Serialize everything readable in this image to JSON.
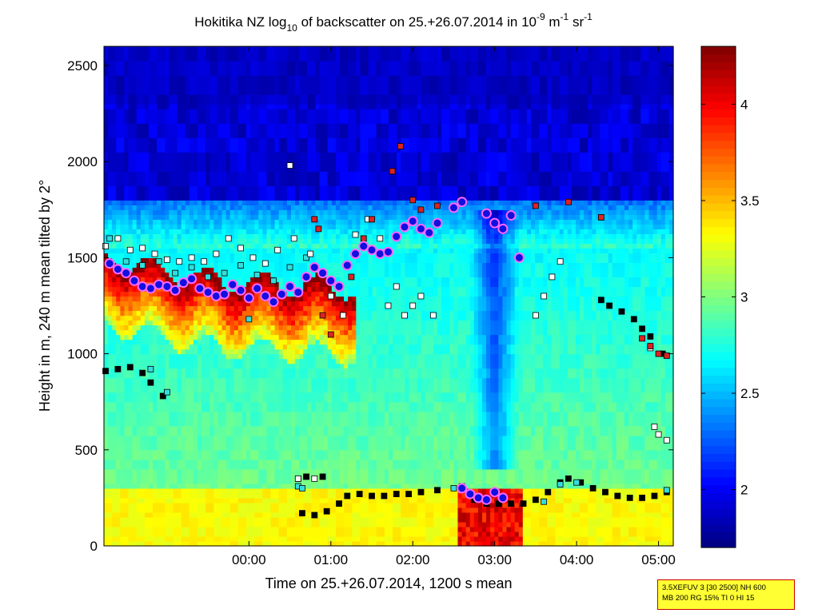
{
  "chart_data": {
    "type": "heatmap",
    "title": "Hokitika NZ log10 of backscatter on 25.+26.07.2014 in 10-9 m-1 sr-1",
    "title_parts": {
      "pre": "Hokitika NZ log",
      "sub": "10",
      "mid": " of backscatter on 25.+26.07.2014 in 10",
      "sup1": "-9",
      "mid2": " m",
      "sup2": "-1",
      "mid3": " sr",
      "sup3": "-1"
    },
    "xlabel": "Time on 25.+26.07.2014, 1200 s mean",
    "ylabel": "Height in m, 240 m mean tilted by 2°",
    "x_ticks": [
      "00:00",
      "01:00",
      "02:00",
      "03:00",
      "04:00",
      "05:00"
    ],
    "x_range_hours": [
      -1.77,
      5.18
    ],
    "y_ticks": [
      "0",
      "500",
      "1000",
      "1500",
      "2000",
      "2500"
    ],
    "y_range": [
      0,
      2600
    ],
    "colorbar": {
      "ticks": [
        "2",
        "2.5",
        "3",
        "3.5",
        "4"
      ],
      "range": [
        1.7,
        4.3
      ],
      "colormap": "jet"
    },
    "field_features": {
      "background_lower": 2.95,
      "background_upper_dark": 1.8,
      "cloud_layer_top_heights_m": [
        1500,
        1380,
        1350,
        1300,
        1380,
        1500
      ],
      "surface_layer_top_m": 300
    },
    "markers": {
      "cloud_base_circles": {
        "color": "#1010e0",
        "edge": "#ff66ff",
        "points": [
          [
            -1.7,
            1470
          ],
          [
            -1.6,
            1440
          ],
          [
            -1.5,
            1420
          ],
          [
            -1.4,
            1380
          ],
          [
            -1.3,
            1350
          ],
          [
            -1.2,
            1340
          ],
          [
            -1.1,
            1360
          ],
          [
            -1.0,
            1350
          ],
          [
            -0.9,
            1330
          ],
          [
            -0.8,
            1370
          ],
          [
            -0.7,
            1390
          ],
          [
            -0.6,
            1340
          ],
          [
            -0.5,
            1320
          ],
          [
            -0.4,
            1300
          ],
          [
            -0.3,
            1310
          ],
          [
            -0.2,
            1360
          ],
          [
            -0.1,
            1330
          ],
          [
            0.0,
            1290
          ],
          [
            0.1,
            1340
          ],
          [
            0.2,
            1300
          ],
          [
            0.3,
            1270
          ],
          [
            0.4,
            1310
          ],
          [
            0.5,
            1350
          ],
          [
            0.6,
            1320
          ],
          [
            0.7,
            1400
          ],
          [
            0.8,
            1450
          ],
          [
            0.9,
            1420
          ],
          [
            1.0,
            1380
          ],
          [
            1.1,
            1350
          ],
          [
            1.2,
            1460
          ],
          [
            1.3,
            1520
          ],
          [
            1.4,
            1560
          ],
          [
            1.5,
            1540
          ],
          [
            1.6,
            1520
          ],
          [
            1.7,
            1530
          ],
          [
            1.8,
            1610
          ],
          [
            1.9,
            1660
          ],
          [
            2.0,
            1690
          ],
          [
            2.1,
            1650
          ],
          [
            2.2,
            1630
          ],
          [
            2.3,
            1680
          ],
          [
            2.5,
            1760
          ],
          [
            2.6,
            1790
          ],
          [
            2.9,
            1730
          ],
          [
            3.0,
            1680
          ],
          [
            3.1,
            1650
          ],
          [
            3.2,
            1720
          ],
          [
            3.3,
            1500
          ],
          [
            2.6,
            300
          ],
          [
            2.7,
            270
          ],
          [
            2.8,
            250
          ],
          [
            2.9,
            240
          ],
          [
            3.0,
            280
          ],
          [
            3.1,
            250
          ]
        ]
      },
      "white_squares": {
        "color": "#ffffff",
        "points": [
          [
            -1.75,
            1560
          ],
          [
            -1.6,
            1600
          ],
          [
            -1.45,
            1540
          ],
          [
            -1.3,
            1550
          ],
          [
            -1.15,
            1520
          ],
          [
            -1.0,
            1490
          ],
          [
            -0.85,
            1480
          ],
          [
            -0.7,
            1500
          ],
          [
            -0.55,
            1480
          ],
          [
            -0.4,
            1520
          ],
          [
            -0.25,
            1600
          ],
          [
            -0.1,
            1550
          ],
          [
            0.05,
            1500
          ],
          [
            0.2,
            1470
          ],
          [
            0.35,
            1540
          ],
          [
            0.5,
            1980
          ],
          [
            0.55,
            1600
          ],
          [
            0.75,
            1520
          ],
          [
            1.0,
            1300
          ],
          [
            1.15,
            1200
          ],
          [
            1.3,
            1620
          ],
          [
            1.45,
            1700
          ],
          [
            1.6,
            1600
          ],
          [
            1.7,
            1250
          ],
          [
            1.8,
            1350
          ],
          [
            1.9,
            1200
          ],
          [
            2.0,
            1250
          ],
          [
            2.1,
            1300
          ],
          [
            2.25,
            1200
          ],
          [
            3.5,
            1200
          ],
          [
            3.6,
            1300
          ],
          [
            3.7,
            1400
          ],
          [
            3.8,
            1480
          ],
          [
            4.9,
            1030
          ],
          [
            4.95,
            620
          ],
          [
            5.0,
            580
          ],
          [
            5.1,
            550
          ],
          [
            0.6,
            350
          ],
          [
            0.8,
            350
          ]
        ]
      },
      "red_squares": {
        "color": "#dd2222",
        "points": [
          [
            0.8,
            1700
          ],
          [
            0.85,
            1650
          ],
          [
            1.25,
            1400
          ],
          [
            1.4,
            1600
          ],
          [
            1.5,
            1700
          ],
          [
            1.75,
            1950
          ],
          [
            1.85,
            2080
          ],
          [
            2.0,
            1800
          ],
          [
            2.1,
            1750
          ],
          [
            2.3,
            1770
          ],
          [
            3.5,
            1770
          ],
          [
            3.9,
            1790
          ],
          [
            4.3,
            1710
          ],
          [
            4.8,
            1080
          ],
          [
            4.9,
            1040
          ],
          [
            5.0,
            1000
          ],
          [
            5.1,
            990
          ],
          [
            0.9,
            1200
          ],
          [
            1.0,
            1100
          ]
        ]
      },
      "cyan_squares": {
        "color": "#33dddd",
        "points": [
          [
            -1.7,
            1600
          ],
          [
            -1.5,
            1480
          ],
          [
            -1.3,
            1460
          ],
          [
            -1.1,
            1480
          ],
          [
            -0.9,
            1420
          ],
          [
            -0.7,
            1450
          ],
          [
            -0.5,
            1400
          ],
          [
            -0.3,
            1420
          ],
          [
            -0.1,
            1460
          ],
          [
            0.1,
            1410
          ],
          [
            0.3,
            1380
          ],
          [
            0.5,
            1450
          ],
          [
            0.7,
            1500
          ],
          [
            0.6,
            310
          ],
          [
            0.65,
            300
          ],
          [
            2.5,
            300
          ],
          [
            3.6,
            230
          ],
          [
            3.8,
            320
          ],
          [
            4.0,
            330
          ],
          [
            5.1,
            290
          ],
          [
            -1.2,
            920
          ],
          [
            -1.0,
            800
          ],
          [
            0.0,
            1180
          ]
        ]
      },
      "black_points": {
        "color": "#000000",
        "points": [
          [
            -1.75,
            910
          ],
          [
            -1.6,
            920
          ],
          [
            -1.45,
            930
          ],
          [
            -1.3,
            900
          ],
          [
            -1.2,
            850
          ],
          [
            -1.05,
            780
          ],
          [
            0.65,
            170
          ],
          [
            0.8,
            160
          ],
          [
            0.95,
            180
          ],
          [
            1.1,
            220
          ],
          [
            1.2,
            260
          ],
          [
            1.35,
            270
          ],
          [
            1.5,
            260
          ],
          [
            1.65,
            260
          ],
          [
            1.8,
            270
          ],
          [
            1.95,
            270
          ],
          [
            2.1,
            280
          ],
          [
            2.3,
            290
          ],
          [
            2.6,
            310
          ],
          [
            2.75,
            240
          ],
          [
            2.9,
            220
          ],
          [
            3.05,
            220
          ],
          [
            3.2,
            220
          ],
          [
            3.35,
            220
          ],
          [
            3.5,
            240
          ],
          [
            3.65,
            280
          ],
          [
            3.8,
            330
          ],
          [
            3.9,
            350
          ],
          [
            4.05,
            330
          ],
          [
            4.2,
            300
          ],
          [
            4.35,
            280
          ],
          [
            4.5,
            260
          ],
          [
            4.65,
            250
          ],
          [
            4.8,
            250
          ],
          [
            4.95,
            260
          ],
          [
            5.1,
            280
          ],
          [
            4.3,
            1280
          ],
          [
            4.4,
            1250
          ],
          [
            4.55,
            1220
          ],
          [
            4.7,
            1180
          ],
          [
            4.8,
            1130
          ],
          [
            4.9,
            1090
          ],
          [
            5.05,
            1000
          ],
          [
            0.6,
            350
          ],
          [
            0.7,
            360
          ],
          [
            0.9,
            360
          ]
        ]
      }
    }
  },
  "info_box": {
    "line1": "3.5XEFUV 3 [30 2500] NH 600",
    "line2": "MB 200 RG 15% TI 0 HI 15"
  },
  "colors": {
    "info_box_bg": "#ffff33",
    "info_box_border": "#cc0000",
    "axes": "#000000"
  }
}
